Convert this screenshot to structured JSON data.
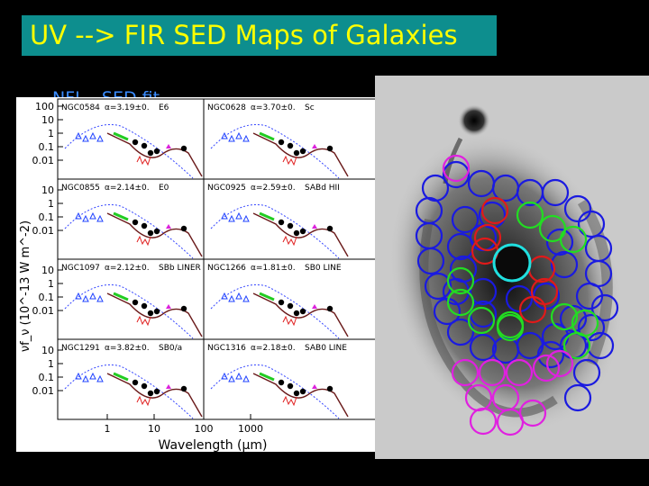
{
  "slide": {
    "title": "UV --> FIR SED Maps of Galaxies",
    "subtitle_partial": "NFI... SED fit..."
  },
  "sed_figure": {
    "y_axis_label": "νf_ν (10^-13 W m^-2)",
    "x_axis_label": "Wavelength (μm)",
    "y_ticks": [
      "10",
      "1",
      "0.1",
      "0.01"
    ],
    "y_ticks_top": [
      "100",
      "10",
      "1",
      "0.1",
      "0.01"
    ],
    "x_ticks": [
      "1",
      "10",
      "100",
      "1000"
    ],
    "panels": [
      {
        "galaxy": "NGC0584",
        "alpha": "α=3.19±0.",
        "extra": "E6"
      },
      {
        "galaxy": "NGC0628",
        "alpha": "α=3.70±0.",
        "extra": "Sc"
      },
      {
        "galaxy": "NGC0855",
        "alpha": "α=2.14±0.",
        "extra": "E0"
      },
      {
        "galaxy": "NGC0925",
        "alpha": "α=2.59±0.",
        "extra": "SABd  HII"
      },
      {
        "galaxy": "NGC1097",
        "alpha": "α=2.12±0.",
        "extra": "SBb  LINER"
      },
      {
        "galaxy": "NGC1266",
        "alpha": "α=1.81±0.",
        "extra": "SB0  LINE"
      },
      {
        "galaxy": "NGC1291",
        "alpha": "α=3.82±0.",
        "extra": "SB0/a"
      },
      {
        "galaxy": "NGC1316",
        "alpha": "α=2.18±0.",
        "extra": "SAB0  LINE"
      }
    ]
  },
  "colors": {
    "title_bg": "#0d8e8e",
    "title_text": "#ffff00",
    "apertures": [
      "#1a1ae0",
      "#e01a1a",
      "#22dd22",
      "#e020e0",
      "#20e0e0"
    ]
  }
}
